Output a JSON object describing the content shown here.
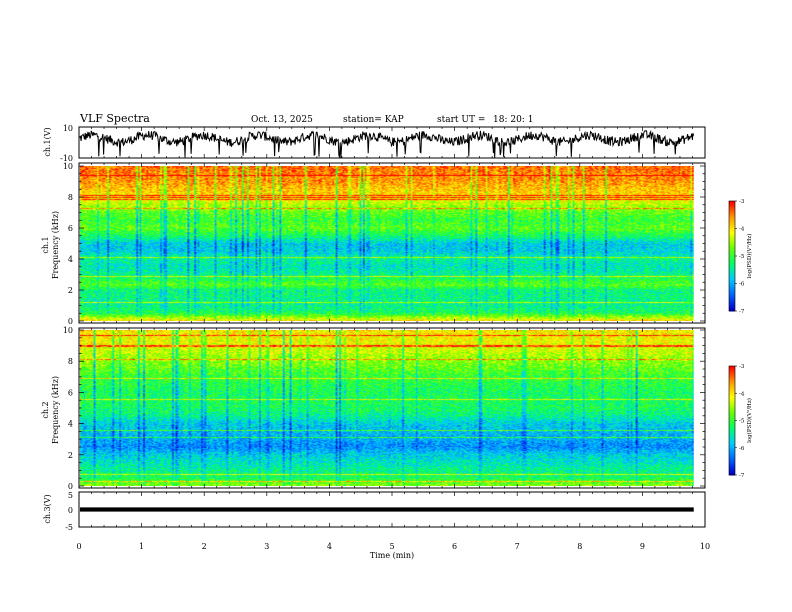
{
  "header": {
    "title": "VLF Spectra",
    "date": "Oct. 13, 2025",
    "station": "station= KAP",
    "start_label": "start  UT  =",
    "start_value": "18: 20: 1"
  },
  "xaxis": {
    "label": "Time  (min)",
    "ticks": [
      "0",
      "1",
      "2",
      "3",
      "4",
      "5",
      "6",
      "7",
      "8",
      "9",
      "10"
    ],
    "range": [
      0,
      10
    ]
  },
  "panels": {
    "ch1_wave": {
      "ylabel": "ch.1(V)",
      "ticks": [
        "10",
        "-10"
      ],
      "ylim": [
        -10,
        10
      ]
    },
    "ch1_spec": {
      "ylabel_top": "ch.1",
      "ylabel": "Frequency  (kHz)",
      "ticks": [
        "10",
        "8",
        "6",
        "4",
        "2",
        "0"
      ],
      "ylim": [
        0,
        10
      ]
    },
    "ch2_spec": {
      "ylabel_top": "ch.2",
      "ylabel": "Frequency  (kHz)",
      "ticks": [
        "10",
        "8",
        "6",
        "4",
        "2",
        "0"
      ],
      "ylim": [
        0,
        10
      ]
    },
    "ch3_wave": {
      "ylabel": "ch.3(V)",
      "ticks": [
        "5",
        "0",
        "-5"
      ],
      "ylim": [
        -5,
        5
      ]
    }
  },
  "colorbar": {
    "label": "log(PSD)(V²/Hz)",
    "ticks": [
      "-3",
      "-4",
      "-5",
      "-6",
      "-7"
    ],
    "range": [
      -7,
      -3
    ],
    "colors": [
      "#0000cc",
      "#0066ff",
      "#00ccff",
      "#00ff66",
      "#66ff00",
      "#ffff00",
      "#ff9900",
      "#ff0000",
      "#ffffff"
    ]
  },
  "chart_data": [
    {
      "type": "line",
      "name": "ch.1 waveform",
      "xlabel": "Time (min)",
      "ylabel": "ch.1(V)",
      "xlim": [
        0,
        9.82
      ],
      "ylim": [
        -10,
        10
      ],
      "description_values": {
        "mean": 2.5,
        "amplitude": 5,
        "min_spikes": -10
      }
    },
    {
      "type": "heatmap",
      "name": "ch.1 spectrogram",
      "xlabel": "Time (min)",
      "ylabel": "Frequency (kHz)",
      "xlim": [
        0,
        9.82
      ],
      "ylim": [
        0,
        10
      ],
      "color_scale": "log(PSD)(V²/Hz)",
      "crange": [
        -7,
        -3
      ],
      "freq_profile_kHz": [
        0,
        0.5,
        1,
        2,
        2.3,
        3,
        3.5,
        4,
        4.5,
        5,
        5.5,
        6,
        6.5,
        7,
        8,
        9,
        10
      ],
      "freq_profile_level": [
        0.75,
        0.45,
        0.4,
        0.42,
        0.55,
        0.4,
        0.35,
        0.4,
        0.3,
        0.3,
        0.45,
        0.55,
        0.5,
        0.55,
        0.75,
        0.85,
        0.9
      ]
    },
    {
      "type": "heatmap",
      "name": "ch.2 spectrogram",
      "xlabel": "Time (min)",
      "ylabel": "Frequency (kHz)",
      "xlim": [
        0,
        9.82
      ],
      "ylim": [
        0,
        10
      ],
      "color_scale": "log(PSD)(V²/Hz)",
      "crange": [
        -7,
        -3
      ],
      "freq_profile_kHz": [
        0,
        0.5,
        1,
        2,
        2.5,
        3,
        4,
        4.5,
        5,
        6,
        7,
        8,
        9,
        10
      ],
      "freq_profile_level": [
        0.6,
        0.45,
        0.4,
        0.3,
        0.2,
        0.25,
        0.3,
        0.4,
        0.45,
        0.45,
        0.5,
        0.6,
        0.7,
        0.75
      ]
    },
    {
      "type": "line",
      "name": "ch.3 waveform",
      "xlabel": "Time (min)",
      "ylabel": "ch.3(V)",
      "xlim": [
        0,
        9.82
      ],
      "ylim": [
        -5,
        5
      ],
      "description_values": {
        "mean": 0,
        "band_min": -0.6,
        "band_max": 0.6
      }
    }
  ]
}
